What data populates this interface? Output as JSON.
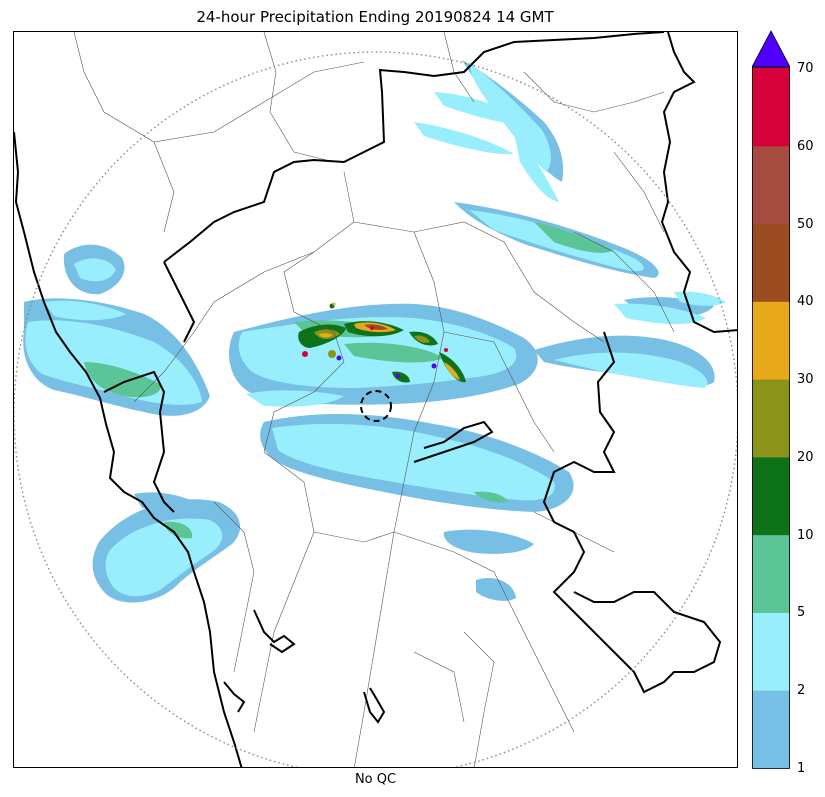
{
  "title": "24-hour Precipitation Ending 20190824 14 GMT",
  "xlabel": "No QC",
  "colorbar": {
    "ticks": [
      "1",
      "2",
      "5",
      "10",
      "20",
      "30",
      "40",
      "50",
      "60",
      "70"
    ],
    "colors": [
      "#77bfe4",
      "#98eefd",
      "#5cc598",
      "#0e7219",
      "#8b9419",
      "#e8a91b",
      "#9b4c20",
      "#a64b3f",
      "#d6003b"
    ],
    "extend_color": "#4f00ff"
  },
  "map": {
    "background": "#ffffff",
    "radar_range_ring": "dotted",
    "radar_site_marker": "dashed-circle",
    "boundary_colors": {
      "country": "#000000",
      "district": "#555555"
    }
  }
}
